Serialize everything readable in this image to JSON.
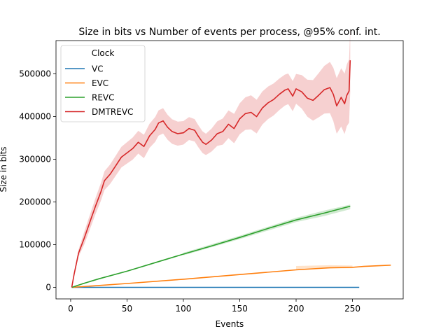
{
  "chart_data": {
    "type": "line",
    "title": "Size in bits vs Number of events per process, @95% conf. int.",
    "xlabel": "Events",
    "ylabel": "Size in bits",
    "xlim": [
      -13,
      295
    ],
    "ylim": [
      -27000,
      578000
    ],
    "x_ticks": [
      0,
      50,
      100,
      150,
      200,
      250
    ],
    "y_ticks": [
      0,
      100000,
      200000,
      300000,
      400000,
      500000
    ],
    "x_tick_labels": [
      "0",
      "50",
      "100",
      "150",
      "200",
      "250"
    ],
    "y_tick_labels": [
      "0",
      "100000",
      "200000",
      "300000",
      "400000",
      "500000"
    ],
    "grid": false,
    "legend": {
      "title": "Clock",
      "position": "top-left"
    },
    "series": [
      {
        "name": "VC",
        "color": "#1f77b4",
        "points": [
          [
            1,
            0
          ],
          [
            256,
            0
          ]
        ]
      },
      {
        "name": "EVC",
        "color": "#ff7f0e",
        "points": [
          [
            1,
            0
          ],
          [
            20,
            3500
          ],
          [
            50,
            9000
          ],
          [
            100,
            19000
          ],
          [
            150,
            30000
          ],
          [
            200,
            41000
          ],
          [
            230,
            46000
          ],
          [
            250,
            47000
          ],
          [
            260,
            49000
          ],
          [
            284,
            52000
          ]
        ],
        "band": [
          [
            200,
            42000,
            50000
          ],
          [
            230,
            44000,
            52000
          ],
          [
            250,
            45000,
            51000
          ]
        ]
      },
      {
        "name": "REVC",
        "color": "#2ca02c",
        "points": [
          [
            1,
            0
          ],
          [
            10,
            8000
          ],
          [
            25,
            20000
          ],
          [
            50,
            38000
          ],
          [
            75,
            58000
          ],
          [
            100,
            78000
          ],
          [
            125,
            97000
          ],
          [
            150,
            117000
          ],
          [
            175,
            138000
          ],
          [
            200,
            158000
          ],
          [
            225,
            174000
          ],
          [
            248,
            190000
          ]
        ],
        "band": [
          [
            100,
            75000,
            81000
          ],
          [
            150,
            113000,
            121000
          ],
          [
            200,
            153000,
            163000
          ],
          [
            225,
            167000,
            180000
          ],
          [
            248,
            183000,
            194000
          ]
        ]
      },
      {
        "name": "DMTREVC",
        "color": "#d62728",
        "points": [
          [
            1,
            0
          ],
          [
            3,
            30000
          ],
          [
            7,
            80000
          ],
          [
            12,
            115000
          ],
          [
            18,
            160000
          ],
          [
            22,
            190000
          ],
          [
            27,
            225000
          ],
          [
            30,
            250000
          ],
          [
            35,
            265000
          ],
          [
            40,
            285000
          ],
          [
            45,
            305000
          ],
          [
            50,
            315000
          ],
          [
            55,
            325000
          ],
          [
            60,
            340000
          ],
          [
            65,
            330000
          ],
          [
            70,
            355000
          ],
          [
            75,
            370000
          ],
          [
            78,
            385000
          ],
          [
            82,
            390000
          ],
          [
            86,
            375000
          ],
          [
            90,
            365000
          ],
          [
            95,
            360000
          ],
          [
            100,
            362000
          ],
          [
            105,
            372000
          ],
          [
            110,
            368000
          ],
          [
            113,
            355000
          ],
          [
            117,
            340000
          ],
          [
            120,
            335000
          ],
          [
            125,
            345000
          ],
          [
            130,
            360000
          ],
          [
            135,
            365000
          ],
          [
            140,
            382000
          ],
          [
            145,
            372000
          ],
          [
            150,
            395000
          ],
          [
            155,
            407000
          ],
          [
            160,
            410000
          ],
          [
            165,
            400000
          ],
          [
            170,
            420000
          ],
          [
            175,
            432000
          ],
          [
            180,
            440000
          ],
          [
            185,
            452000
          ],
          [
            190,
            462000
          ],
          [
            193,
            465000
          ],
          [
            197,
            448000
          ],
          [
            200,
            465000
          ],
          [
            205,
            458000
          ],
          [
            210,
            443000
          ],
          [
            215,
            438000
          ],
          [
            220,
            450000
          ],
          [
            225,
            463000
          ],
          [
            230,
            468000
          ],
          [
            233,
            452000
          ],
          [
            236,
            425000
          ],
          [
            240,
            445000
          ],
          [
            243,
            430000
          ],
          [
            245,
            450000
          ],
          [
            247,
            460000
          ],
          [
            248,
            532000
          ]
        ],
        "band_halfwidth": [
          [
            1,
            0
          ],
          [
            12,
            15000
          ],
          [
            30,
            22000
          ],
          [
            50,
            25000
          ],
          [
            80,
            30000
          ],
          [
            120,
            25000
          ],
          [
            160,
            40000
          ],
          [
            200,
            35000
          ],
          [
            230,
            60000
          ],
          [
            248,
            75000
          ]
        ]
      }
    ]
  }
}
